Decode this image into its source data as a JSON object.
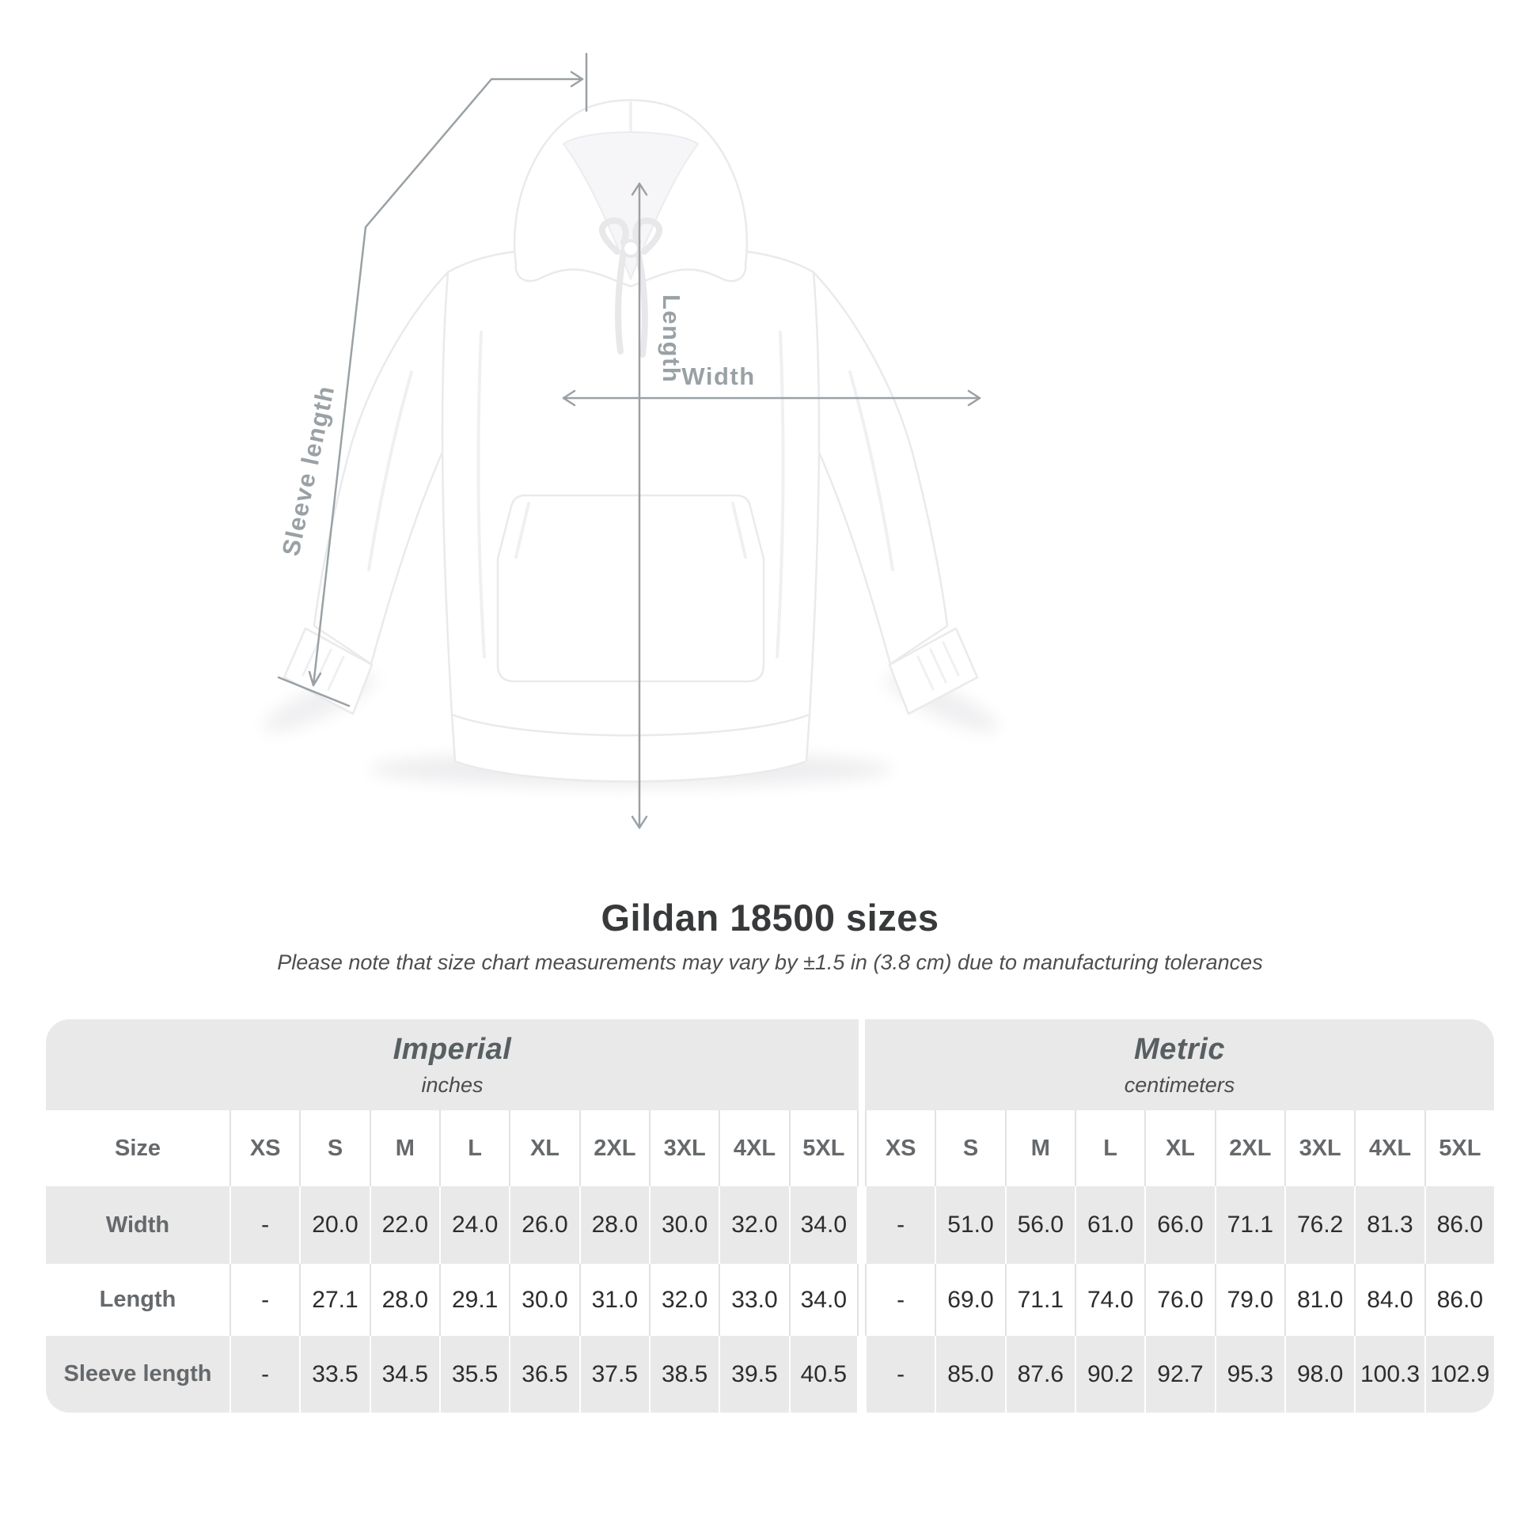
{
  "header": {
    "title": "Gildan 18500 sizes",
    "subtitle": "Please note that size chart measurements may vary by ±1.5 in (3.8 cm) due to manufacturing tolerances"
  },
  "diagram": {
    "width_label": "Width",
    "length_label": "Length",
    "sleeve_label": "Sleeve length"
  },
  "colors": {
    "row_shade": "#e9e9e9",
    "dimension_gray": "#9aa1a5",
    "number_text": "#2d2d2f",
    "label_text": "#66696c"
  },
  "chart_data": {
    "type": "table",
    "title": "Gildan 18500 sizes",
    "note": "Please note that size chart measurements may vary by ±1.5 in (3.8 cm) due to manufacturing tolerances",
    "corner_label": "Size",
    "groups": [
      {
        "label": "Imperial",
        "unit": "inches"
      },
      {
        "label": "Metric",
        "unit": "centimeters"
      }
    ],
    "sizes": [
      "XS",
      "S",
      "M",
      "L",
      "XL",
      "2XL",
      "3XL",
      "4XL",
      "5XL"
    ],
    "rows": [
      {
        "label": "Width",
        "imperial": [
          "-",
          "20.0",
          "22.0",
          "24.0",
          "26.0",
          "28.0",
          "30.0",
          "32.0",
          "34.0"
        ],
        "metric": [
          "-",
          "51.0",
          "56.0",
          "61.0",
          "66.0",
          "71.1",
          "76.2",
          "81.3",
          "86.0"
        ]
      },
      {
        "label": "Length",
        "imperial": [
          "-",
          "27.1",
          "28.0",
          "29.1",
          "30.0",
          "31.0",
          "32.0",
          "33.0",
          "34.0"
        ],
        "metric": [
          "-",
          "69.0",
          "71.1",
          "74.0",
          "76.0",
          "79.0",
          "81.0",
          "84.0",
          "86.0"
        ]
      },
      {
        "label": "Sleeve length",
        "imperial": [
          "-",
          "33.5",
          "34.5",
          "35.5",
          "36.5",
          "37.5",
          "38.5",
          "39.5",
          "40.5"
        ],
        "metric": [
          "-",
          "85.0",
          "87.6",
          "90.2",
          "92.7",
          "95.3",
          "98.0",
          "100.3",
          "102.9"
        ]
      }
    ]
  }
}
